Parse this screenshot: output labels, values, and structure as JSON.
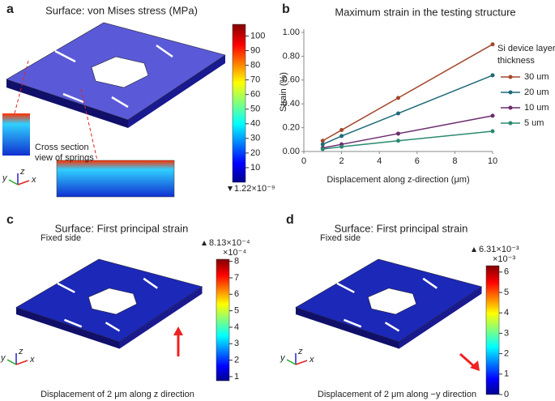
{
  "panels": {
    "a": {
      "label": "a",
      "title": "Surface: von Mises stress (MPa)",
      "colorbar_lim": [
        0,
        108
      ],
      "colorbar_ticks": [
        10,
        20,
        30,
        40,
        50,
        60,
        70,
        80,
        90,
        100
      ],
      "min_label": "1.22×10⁻⁹",
      "annotations": [
        "Cross section",
        "view of springs"
      ]
    },
    "c": {
      "label": "c",
      "title": "Surface: First principal strain",
      "colorbar_lim": [
        0.75,
        8.13
      ],
      "colorbar_ticks": [
        1,
        2,
        3,
        4,
        5,
        6,
        7,
        8
      ],
      "max_label": "8.13×10⁻⁴",
      "unit": "×10⁻⁴",
      "fixed": "Fixed side",
      "caption": "Displacement of 2 μm along z direction"
    },
    "d": {
      "label": "d",
      "title": "Surface: First principal strain",
      "colorbar_lim": [
        0,
        6.31
      ],
      "colorbar_ticks": [
        0,
        1,
        2,
        3,
        4,
        5,
        6
      ],
      "max_label": "6.31×10⁻³",
      "unit": "×10⁻³",
      "fixed": "Fixed side",
      "caption": "Displacement of 2 μm along −y direction"
    },
    "triad": [
      "x",
      "y",
      "z"
    ]
  },
  "chart_data": {
    "type": "line",
    "label": "b",
    "title": "Maximum strain in the testing structure",
    "x_label": "Displacement along z-direction (μm)",
    "y_label": "Strain (%)",
    "x": [
      1,
      2,
      5,
      10
    ],
    "xlim": [
      0,
      10
    ],
    "xticks": [
      0,
      2,
      4,
      6,
      8,
      10
    ],
    "ylim": [
      0,
      1
    ],
    "yticks": [
      {
        "value": 0,
        "label": "0.00"
      },
      {
        "value": 0.2,
        "label": "0.20"
      },
      {
        "value": 0.4,
        "label": "0.40"
      },
      {
        "value": 0.6,
        "label": "0.60"
      },
      {
        "value": 0.8,
        "label": "0.80"
      },
      {
        "value": 1,
        "label": "1.00"
      }
    ],
    "legend_title": [
      "Si device layer",
      "thickness"
    ],
    "series": [
      {
        "name": "30 um",
        "color": "#a3482c",
        "values": [
          0.09,
          0.18,
          0.45,
          0.9
        ]
      },
      {
        "name": "20 um",
        "color": "#1f6a78",
        "values": [
          0.06,
          0.13,
          0.32,
          0.64
        ]
      },
      {
        "name": "10 um",
        "color": "#6b2c6e",
        "values": [
          0.03,
          0.06,
          0.15,
          0.3
        ]
      },
      {
        "name": "5 um",
        "color": "#2a8a70",
        "values": [
          0.02,
          0.04,
          0.09,
          0.17
        ]
      }
    ]
  }
}
